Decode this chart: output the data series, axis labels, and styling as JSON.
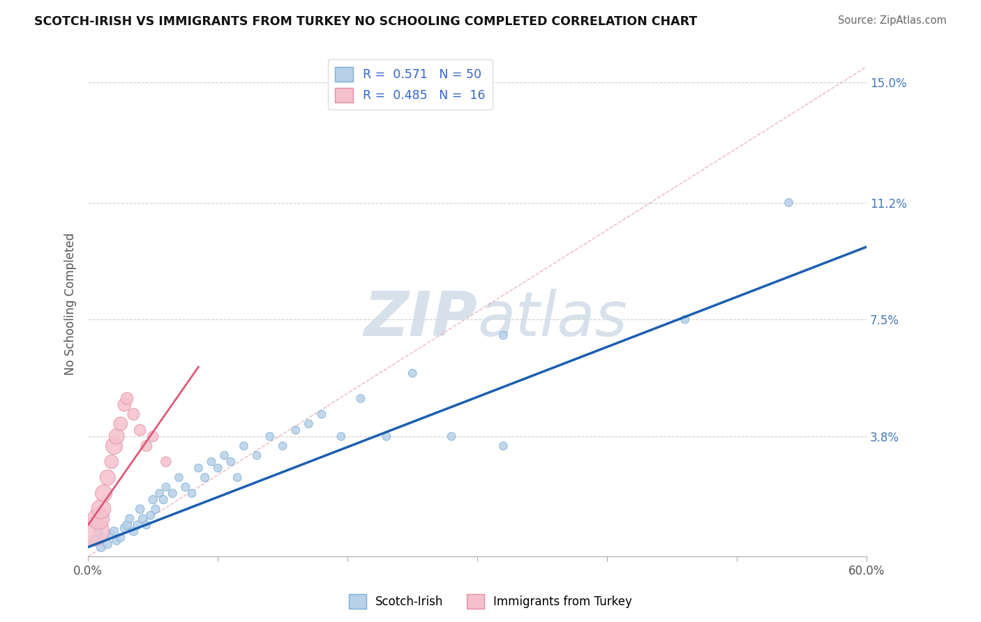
{
  "title": "SCOTCH-IRISH VS IMMIGRANTS FROM TURKEY NO SCHOOLING COMPLETED CORRELATION CHART",
  "source": "Source: ZipAtlas.com",
  "ylabel": "No Schooling Completed",
  "xlim": [
    0.0,
    0.6
  ],
  "ylim": [
    0.0,
    0.16
  ],
  "yticks": [
    0.0,
    0.038,
    0.075,
    0.112,
    0.15
  ],
  "yticklabels": [
    "",
    "3.8%",
    "7.5%",
    "11.2%",
    "15.0%"
  ],
  "r_blue": 0.571,
  "n_blue": 50,
  "r_pink": 0.485,
  "n_pink": 16,
  "blue_color": "#b8d0e8",
  "blue_edge": "#7aafd4",
  "pink_color": "#f5c0cc",
  "pink_edge": "#e090a8",
  "regression_blue_color": "#1a5fb0",
  "regression_pink_color": "#e05878",
  "diag_color": "#e8a0b0",
  "watermark_color": "#d0dce8",
  "legend_text_color": "#3366cc",
  "ytick_color": "#4477bb",
  "blue_line": {
    "x0": 0.0,
    "y0": 0.003,
    "x1": 0.6,
    "y1": 0.098
  },
  "pink_line": {
    "x0": 0.0,
    "y0": 0.01,
    "x1": 0.085,
    "y1": 0.06
  },
  "diag_line": {
    "x0": 0.0,
    "y0": 0.0,
    "x1": 0.6,
    "y1": 0.155
  },
  "blue_x": [
    0.005,
    0.008,
    0.01,
    0.012,
    0.015,
    0.018,
    0.02,
    0.022,
    0.025,
    0.028,
    0.03,
    0.032,
    0.035,
    0.038,
    0.04,
    0.042,
    0.045,
    0.048,
    0.05,
    0.052,
    0.055,
    0.058,
    0.06,
    0.065,
    0.07,
    0.075,
    0.08,
    0.085,
    0.09,
    0.095,
    0.1,
    0.105,
    0.11,
    0.115,
    0.12,
    0.13,
    0.14,
    0.15,
    0.16,
    0.17,
    0.18,
    0.195,
    0.21,
    0.23,
    0.25,
    0.28,
    0.32,
    0.32,
    0.46,
    0.54
  ],
  "blue_y": [
    0.005,
    0.008,
    0.003,
    0.006,
    0.004,
    0.007,
    0.008,
    0.005,
    0.006,
    0.009,
    0.01,
    0.012,
    0.008,
    0.01,
    0.015,
    0.012,
    0.01,
    0.013,
    0.018,
    0.015,
    0.02,
    0.018,
    0.022,
    0.02,
    0.025,
    0.022,
    0.02,
    0.028,
    0.025,
    0.03,
    0.028,
    0.032,
    0.03,
    0.025,
    0.035,
    0.032,
    0.038,
    0.035,
    0.04,
    0.042,
    0.045,
    0.038,
    0.05,
    0.038,
    0.058,
    0.038,
    0.035,
    0.07,
    0.075,
    0.112
  ],
  "blue_s": [
    120,
    80,
    90,
    70,
    85,
    75,
    80,
    70,
    75,
    80,
    85,
    75,
    80,
    75,
    80,
    75,
    70,
    75,
    80,
    75,
    70,
    75,
    70,
    75,
    70,
    75,
    70,
    70,
    75,
    70,
    70,
    70,
    70,
    70,
    70,
    70,
    70,
    70,
    70,
    70,
    70,
    70,
    70,
    70,
    70,
    70,
    70,
    70,
    70,
    70
  ],
  "pink_x": [
    0.005,
    0.008,
    0.01,
    0.012,
    0.015,
    0.018,
    0.02,
    0.022,
    0.025,
    0.028,
    0.03,
    0.035,
    0.04,
    0.045,
    0.05,
    0.06
  ],
  "pink_y": [
    0.008,
    0.012,
    0.015,
    0.02,
    0.025,
    0.03,
    0.035,
    0.038,
    0.042,
    0.048,
    0.05,
    0.045,
    0.04,
    0.035,
    0.038,
    0.03
  ],
  "pink_s": [
    900,
    500,
    400,
    300,
    250,
    200,
    300,
    250,
    200,
    180,
    160,
    150,
    140,
    130,
    120,
    110
  ]
}
